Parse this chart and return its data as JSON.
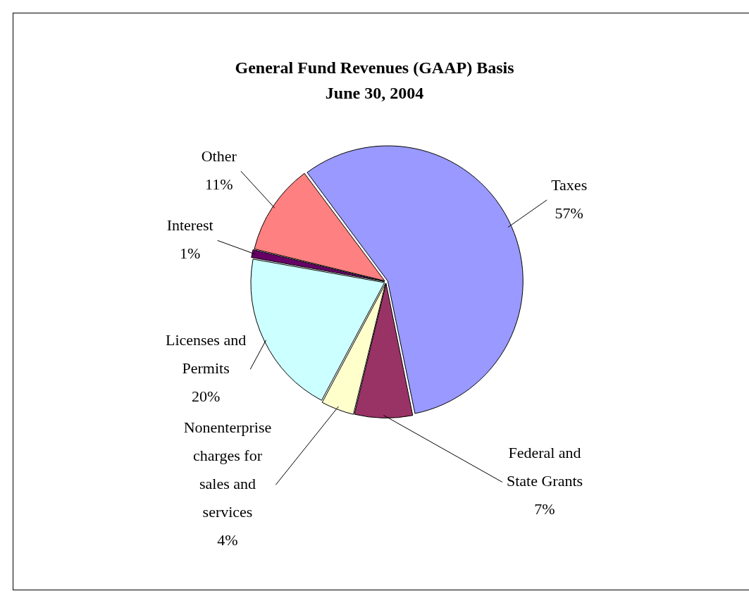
{
  "chart_data": {
    "type": "pie",
    "title": "General Fund Revenues (GAAP) Basis",
    "subtitle": "June 30, 2004",
    "categories": [
      "Taxes",
      "Federal and State Grants",
      "Nonenterprise charges for sales and services",
      "Licenses and Permits",
      "Interest",
      "Other"
    ],
    "values": [
      57,
      7,
      4,
      20,
      1,
      11
    ],
    "value_labels": [
      "57%",
      "7%",
      "4%",
      "20%",
      "1%",
      "11%"
    ],
    "colors": [
      "#9999ff",
      "#993366",
      "#ffffcc",
      "#ccffff",
      "#660066",
      "#ff8080"
    ],
    "legend": false
  }
}
